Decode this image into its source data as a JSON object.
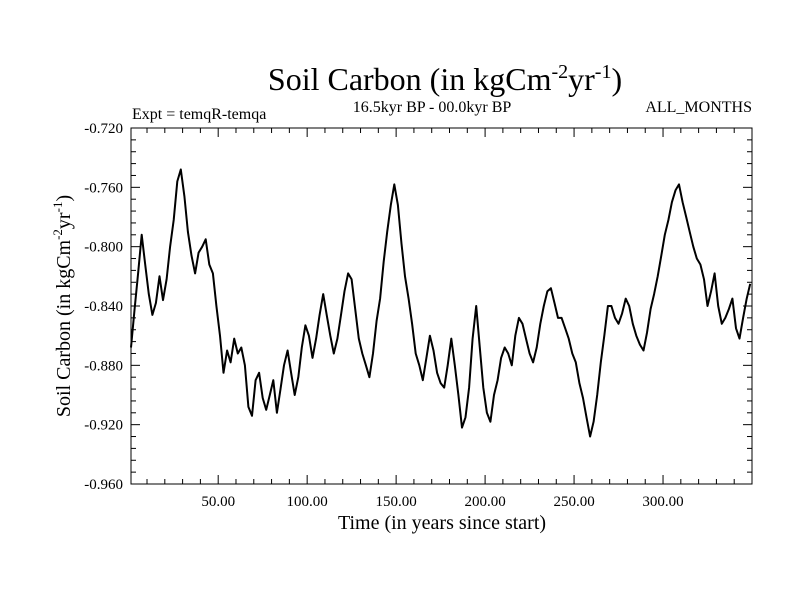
{
  "chart_data": {
    "type": "line",
    "title": {
      "base": "Soil Carbon (in kgCm",
      "sup1": "-2",
      "mid": "yr",
      "sup2": "-1",
      "end": ")"
    },
    "subtitle_left": "Expt = temqR-temqa",
    "subtitle_center": "16.5kyr BP - 00.0kyr BP",
    "subtitle_right": "ALL_MONTHS",
    "xlabel": "Time (in years since start)",
    "ylabel": {
      "base": "Soil Carbon (in kgCm",
      "sup1": "-2",
      "mid": "yr",
      "sup2": "-1",
      "end": ")"
    },
    "xlim": [
      1,
      350
    ],
    "ylim": [
      -0.96,
      -0.72
    ],
    "x_ticks": [
      50,
      100,
      150,
      200,
      250,
      300
    ],
    "x_tick_labels": [
      "50.00",
      "100.00",
      "150.00",
      "200.00",
      "250.00",
      "300.00"
    ],
    "y_ticks": [
      -0.72,
      -0.76,
      -0.8,
      -0.84,
      -0.88,
      -0.92,
      -0.96
    ],
    "y_tick_labels": [
      "-0.720",
      "-0.760",
      "-0.800",
      "-0.840",
      "-0.880",
      "-0.920",
      "-0.960"
    ],
    "series": [
      {
        "name": "Soil Carbon",
        "color": "#000000",
        "x": [
          1,
          3,
          5,
          7,
          9,
          11,
          13,
          15,
          17,
          19,
          21,
          23,
          25,
          27,
          29,
          31,
          33,
          35,
          37,
          39,
          41,
          43,
          45,
          47,
          49,
          51,
          53,
          55,
          57,
          59,
          61,
          63,
          65,
          67,
          69,
          71,
          73,
          75,
          77,
          79,
          81,
          83,
          85,
          87,
          89,
          91,
          93,
          95,
          97,
          99,
          101,
          103,
          105,
          107,
          109,
          111,
          113,
          115,
          117,
          119,
          121,
          123,
          125,
          127,
          129,
          131,
          133,
          135,
          137,
          139,
          141,
          143,
          145,
          147,
          149,
          151,
          153,
          155,
          157,
          159,
          161,
          163,
          165,
          167,
          169,
          171,
          173,
          175,
          177,
          179,
          181,
          183,
          185,
          187,
          189,
          191,
          193,
          195,
          197,
          199,
          201,
          203,
          205,
          207,
          209,
          211,
          213,
          215,
          217,
          219,
          221,
          223,
          225,
          227,
          229,
          231,
          233,
          235,
          237,
          239,
          241,
          243,
          245,
          247,
          249,
          251,
          253,
          255,
          257,
          259,
          261,
          263,
          265,
          267,
          269,
          271,
          273,
          275,
          277,
          279,
          281,
          283,
          285,
          287,
          289,
          291,
          293,
          295,
          297,
          299,
          301,
          303,
          305,
          307,
          309,
          311,
          313,
          315,
          317,
          319,
          321,
          323,
          325,
          327,
          329,
          331,
          333,
          335,
          337,
          339,
          341,
          343,
          345,
          347,
          349
        ],
        "y": [
          -0.868,
          -0.842,
          -0.818,
          -0.792,
          -0.812,
          -0.832,
          -0.846,
          -0.838,
          -0.82,
          -0.836,
          -0.822,
          -0.8,
          -0.782,
          -0.756,
          -0.748,
          -0.766,
          -0.79,
          -0.806,
          -0.818,
          -0.804,
          -0.8,
          -0.795,
          -0.812,
          -0.818,
          -0.84,
          -0.86,
          -0.885,
          -0.87,
          -0.878,
          -0.862,
          -0.872,
          -0.868,
          -0.88,
          -0.908,
          -0.914,
          -0.89,
          -0.885,
          -0.902,
          -0.91,
          -0.9,
          -0.89,
          -0.912,
          -0.896,
          -0.88,
          -0.87,
          -0.885,
          -0.9,
          -0.888,
          -0.868,
          -0.853,
          -0.86,
          -0.875,
          -0.862,
          -0.846,
          -0.832,
          -0.846,
          -0.86,
          -0.872,
          -0.862,
          -0.846,
          -0.83,
          -0.818,
          -0.822,
          -0.842,
          -0.862,
          -0.872,
          -0.88,
          -0.888,
          -0.872,
          -0.85,
          -0.835,
          -0.81,
          -0.79,
          -0.772,
          -0.758,
          -0.772,
          -0.798,
          -0.82,
          -0.835,
          -0.852,
          -0.872,
          -0.88,
          -0.89,
          -0.875,
          -0.86,
          -0.87,
          -0.885,
          -0.892,
          -0.895,
          -0.88,
          -0.862,
          -0.88,
          -0.9,
          -0.922,
          -0.915,
          -0.895,
          -0.862,
          -0.84,
          -0.868,
          -0.895,
          -0.912,
          -0.918,
          -0.9,
          -0.89,
          -0.875,
          -0.868,
          -0.872,
          -0.88,
          -0.86,
          -0.848,
          -0.852,
          -0.862,
          -0.872,
          -0.878,
          -0.868,
          -0.852,
          -0.84,
          -0.83,
          -0.828,
          -0.838,
          -0.848,
          -0.848,
          -0.855,
          -0.862,
          -0.872,
          -0.878,
          -0.892,
          -0.902,
          -0.915,
          -0.928,
          -0.918,
          -0.9,
          -0.878,
          -0.86,
          -0.84,
          -0.84,
          -0.848,
          -0.852,
          -0.845,
          -0.835,
          -0.84,
          -0.852,
          -0.86,
          -0.866,
          -0.87,
          -0.858,
          -0.842,
          -0.832,
          -0.82,
          -0.806,
          -0.792,
          -0.782,
          -0.77,
          -0.762,
          -0.758,
          -0.77,
          -0.78,
          -0.79,
          -0.8,
          -0.808,
          -0.812,
          -0.822,
          -0.84,
          -0.83,
          -0.818,
          -0.84,
          -0.852,
          -0.848,
          -0.842,
          -0.835,
          -0.855,
          -0.862,
          -0.848,
          -0.835,
          -0.825
        ]
      }
    ]
  }
}
